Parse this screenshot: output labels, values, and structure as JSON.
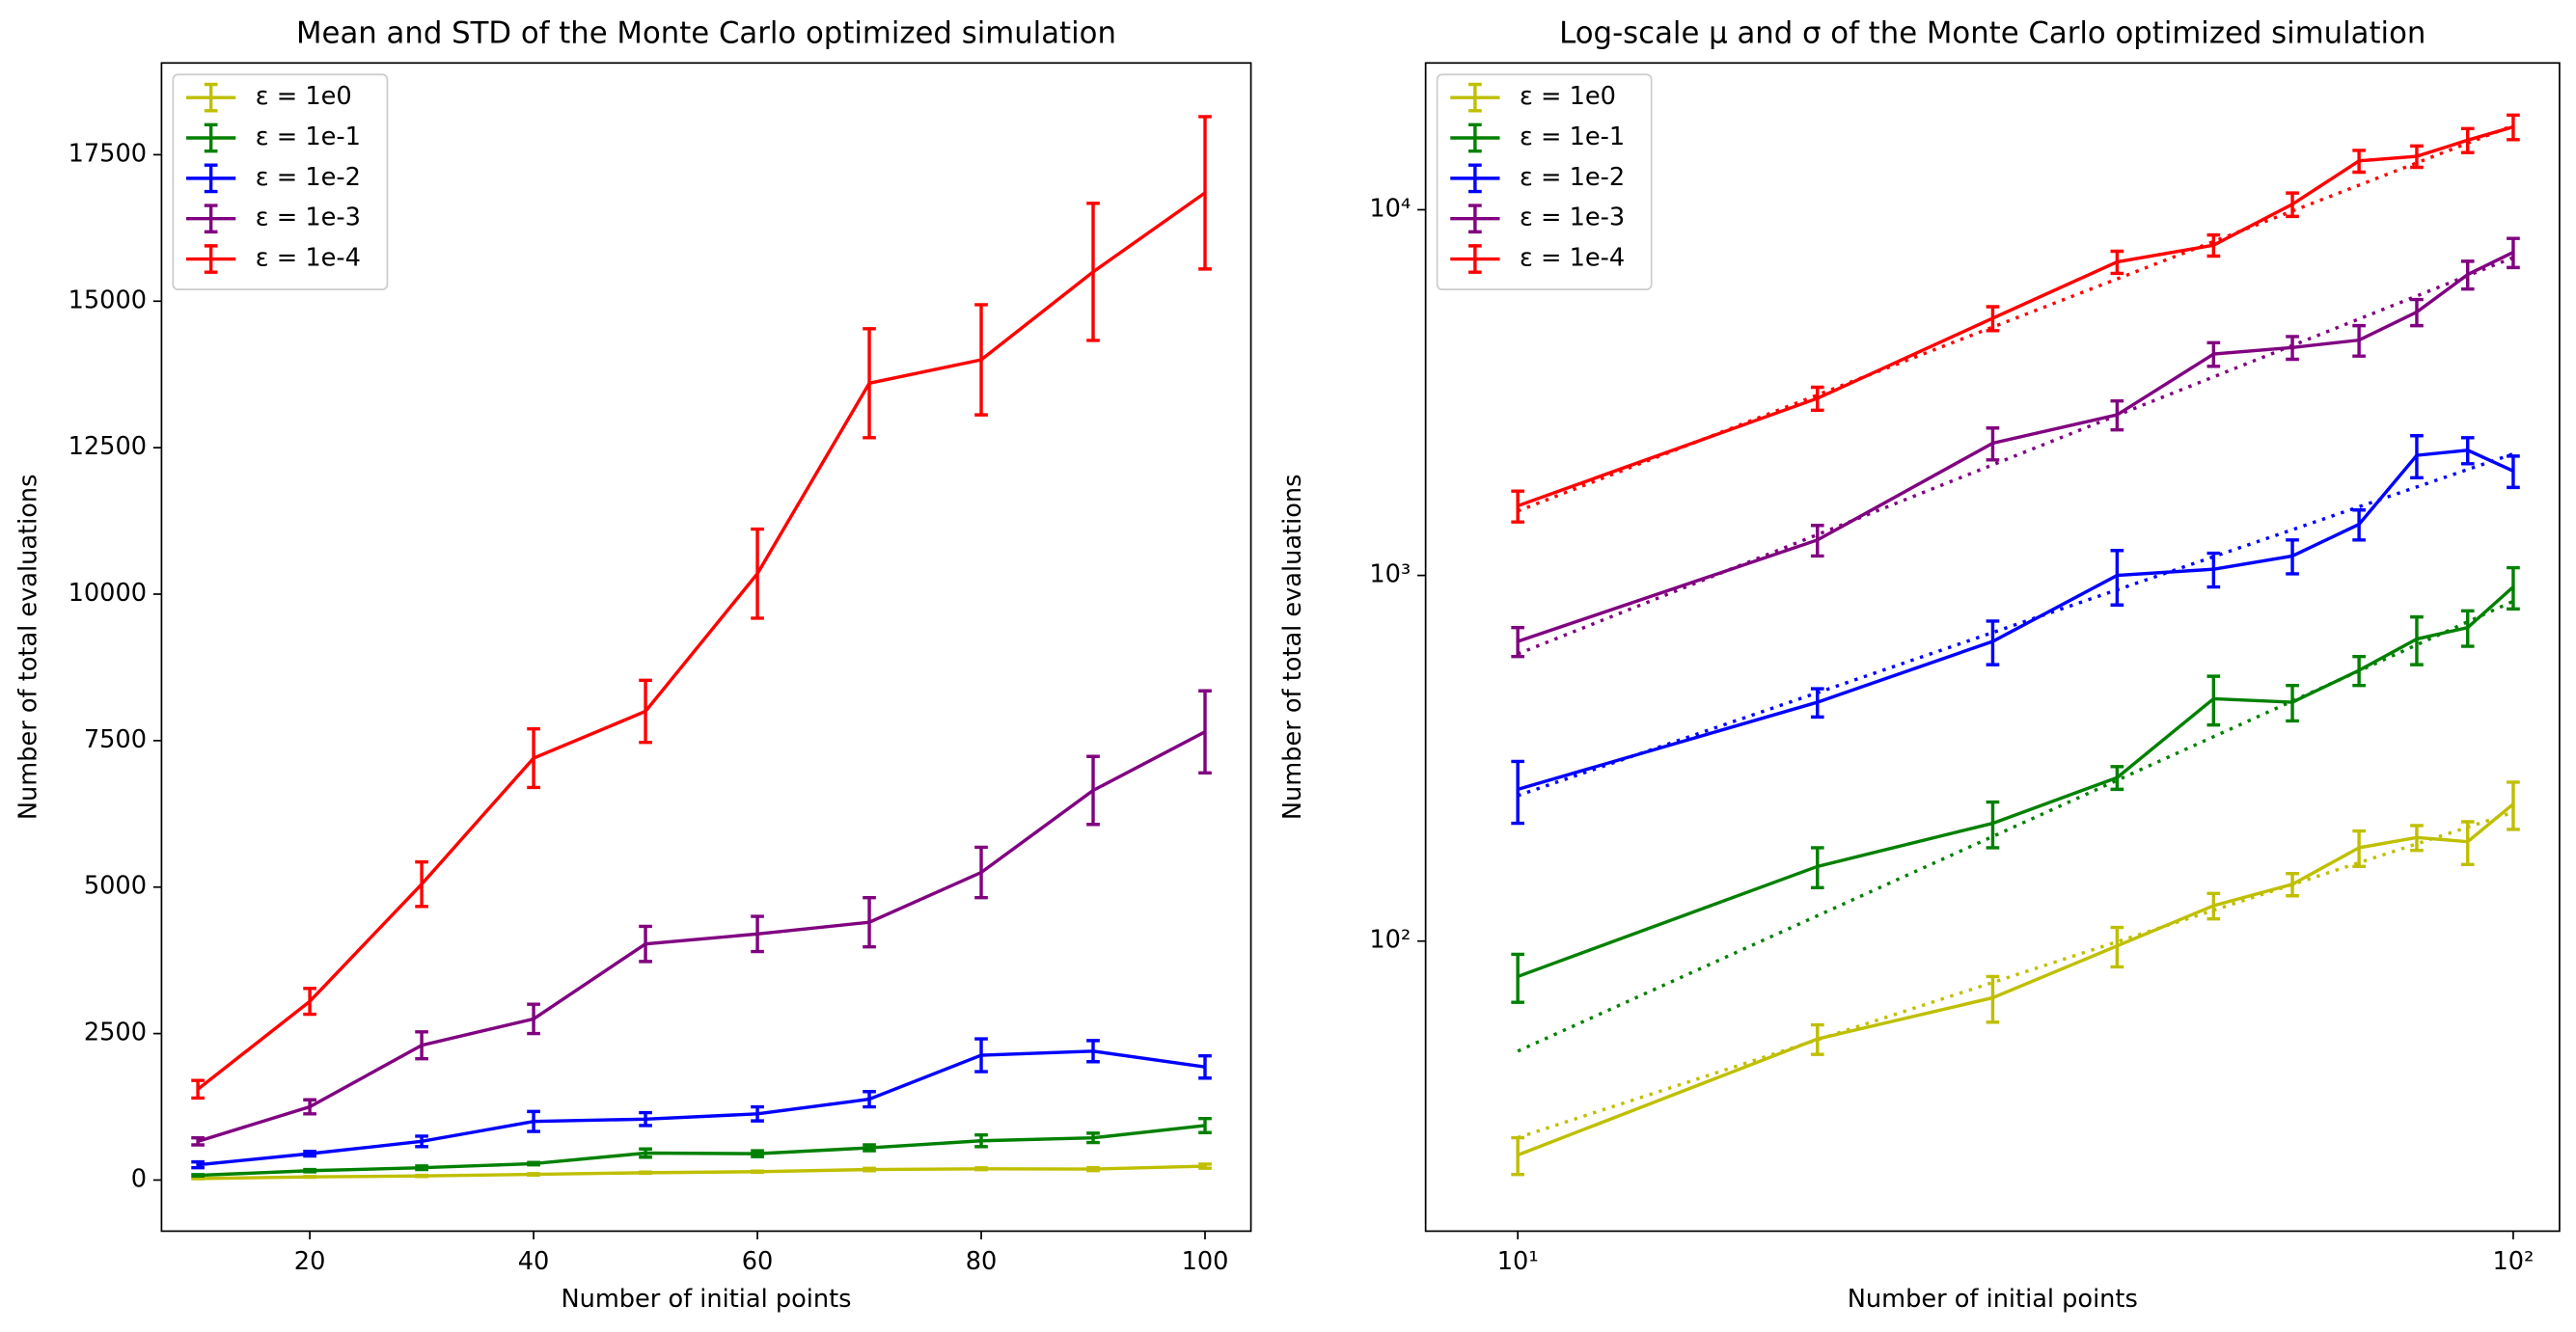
{
  "chart_data": [
    {
      "type": "errorbar",
      "title": "Mean and STD of the Monte Carlo optimized simulation",
      "x_label": "Number of initial points",
      "y_label": "Number of total evaluations",
      "x": [
        10,
        20,
        30,
        40,
        50,
        60,
        70,
        80,
        90,
        100
      ],
      "xlim": [
        6.75,
        104.1
      ],
      "ylim": [
        -872,
        19066
      ],
      "xticks": [
        20,
        40,
        60,
        80,
        100
      ],
      "yticks": [
        0,
        2500,
        5000,
        7500,
        10000,
        12500,
        15000,
        17500
      ],
      "legend": "upper left",
      "series": [
        {
          "name": "ε = 1e0",
          "color": "#bfbf00",
          "values": [
            26,
            54,
            70,
            97,
            125,
            143,
            180,
            192,
            187,
            237
          ],
          "errors": [
            3,
            5,
            10,
            12,
            10,
            10,
            20,
            15,
            25,
            35
          ]
        },
        {
          "name": "ε = 1e-1",
          "color": "#008000",
          "values": [
            80,
            160,
            210,
            280,
            460,
            450,
            550,
            670,
            720,
            930
          ],
          "errors": [
            12,
            20,
            30,
            20,
            70,
            50,
            50,
            100,
            80,
            120
          ]
        },
        {
          "name": "ε = 1e-2",
          "color": "#0000ff",
          "values": [
            260,
            450,
            660,
            1000,
            1040,
            1130,
            1380,
            2130,
            2200,
            1930
          ],
          "errors": [
            50,
            40,
            90,
            170,
            110,
            120,
            130,
            280,
            180,
            190
          ]
        },
        {
          "name": "ε = 1e-3",
          "color": "#800080",
          "values": [
            660,
            1250,
            2300,
            2750,
            4030,
            4200,
            4400,
            5250,
            6650,
            7650
          ],
          "errors": [
            60,
            120,
            230,
            250,
            300,
            300,
            420,
            430,
            580,
            700
          ]
        },
        {
          "name": "ε = 1e-4",
          "color": "#ff0000",
          "values": [
            1550,
            3050,
            5050,
            7200,
            8000,
            10350,
            13600,
            14000,
            15500,
            16850
          ],
          "errors": [
            150,
            220,
            380,
            500,
            530,
            760,
            930,
            940,
            1170,
            1300
          ]
        }
      ]
    },
    {
      "type": "errorbar",
      "title": "Log-scale μ and σ of the Monte Carlo optimized simulation",
      "x_label": "Number of initial points",
      "y_label": "Number of total evaluations",
      "x": [
        10,
        20,
        30,
        40,
        50,
        60,
        70,
        80,
        90,
        100
      ],
      "log_x": true,
      "log_y": true,
      "xlim": [
        8.08,
        111.3
      ],
      "ylim": [
        16.1,
        25200
      ],
      "xticks": [
        {
          "value": 10,
          "label": "10¹"
        },
        {
          "value": 100,
          "label": "10²"
        }
      ],
      "yticks": [
        {
          "value": 100,
          "label": "10²"
        },
        {
          "value": 1000,
          "label": "10³"
        },
        {
          "value": 10000,
          "label": "10⁴"
        }
      ],
      "legend": "upper left",
      "fit_x": [
        10,
        100
      ],
      "series": [
        {
          "name": "ε = 1e0",
          "color": "#bfbf00",
          "values": [
            26,
            54,
            70,
            97,
            125,
            143,
            180,
            192,
            187,
            237
          ],
          "errors": [
            3,
            5,
            10,
            12,
            10,
            10,
            20,
            15,
            25,
            35
          ],
          "fit": [
            29,
            225
          ]
        },
        {
          "name": "ε = 1e-1",
          "color": "#008000",
          "values": [
            80,
            160,
            210,
            280,
            460,
            450,
            550,
            670,
            720,
            930
          ],
          "errors": [
            12,
            20,
            30,
            20,
            70,
            50,
            50,
            100,
            80,
            120
          ],
          "fit": [
            50,
            850
          ]
        },
        {
          "name": "ε = 1e-2",
          "color": "#0000ff",
          "values": [
            260,
            450,
            660,
            1000,
            1040,
            1130,
            1380,
            2130,
            2200,
            1930
          ],
          "errors": [
            50,
            40,
            90,
            170,
            110,
            120,
            130,
            280,
            180,
            190
          ],
          "fit": [
            250,
            2150
          ]
        },
        {
          "name": "ε = 1e-3",
          "color": "#800080",
          "values": [
            660,
            1250,
            2300,
            2750,
            4030,
            4200,
            4400,
            5250,
            6650,
            7650
          ],
          "errors": [
            60,
            120,
            230,
            250,
            300,
            300,
            420,
            430,
            580,
            700
          ],
          "fit": [
            610,
            7400
          ]
        },
        {
          "name": "ε = 1e-4",
          "color": "#ff0000",
          "values": [
            1550,
            3050,
            5050,
            7200,
            8000,
            10350,
            13600,
            14000,
            15500,
            16850
          ],
          "errors": [
            150,
            220,
            380,
            500,
            530,
            760,
            930,
            940,
            1170,
            1300
          ],
          "fit": [
            1500,
            17000
          ]
        }
      ]
    }
  ]
}
